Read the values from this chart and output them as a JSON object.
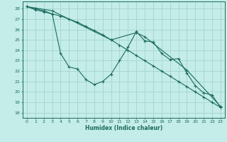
{
  "xlabel": "Humidex (Indice chaleur)",
  "xlim": [
    -0.5,
    23.5
  ],
  "ylim": [
    17.5,
    28.7
  ],
  "yticks": [
    18,
    19,
    20,
    21,
    22,
    23,
    24,
    25,
    26,
    27,
    28
  ],
  "xticks": [
    0,
    1,
    2,
    3,
    4,
    5,
    6,
    7,
    8,
    9,
    10,
    11,
    12,
    13,
    14,
    15,
    16,
    17,
    18,
    19,
    20,
    21,
    22,
    23
  ],
  "bg_color": "#c4ece8",
  "grid_color": "#a8d8d0",
  "line_color": "#1a6b5e",
  "series": [
    {
      "x": [
        0,
        1,
        2,
        3,
        4,
        5,
        6,
        7,
        8,
        9,
        10,
        11,
        12,
        13,
        14,
        15,
        16,
        17,
        18,
        19,
        20,
        21,
        22,
        23
      ],
      "y": [
        28.2,
        28.0,
        27.8,
        27.5,
        23.7,
        22.4,
        22.2,
        21.2,
        20.7,
        21.0,
        21.7,
        23.0,
        24.3,
        25.8,
        24.9,
        24.8,
        23.7,
        23.1,
        23.2,
        21.8,
        20.6,
        19.9,
        19.7,
        18.5
      ]
    },
    {
      "x": [
        0,
        1,
        2,
        3,
        4,
        5,
        6,
        7,
        8,
        9,
        10,
        11,
        12,
        13,
        14,
        15,
        16,
        17,
        18,
        19,
        20,
        21,
        22,
        23
      ],
      "y": [
        28.2,
        27.9,
        27.7,
        27.5,
        27.3,
        27.0,
        26.7,
        26.3,
        25.9,
        25.5,
        25.0,
        24.5,
        24.0,
        23.5,
        23.0,
        22.5,
        22.0,
        21.5,
        21.0,
        20.5,
        20.0,
        19.5,
        19.0,
        18.5
      ]
    },
    {
      "x": [
        0,
        3,
        10,
        13,
        14,
        19,
        23
      ],
      "y": [
        28.2,
        27.8,
        25.0,
        25.7,
        25.3,
        22.1,
        18.6
      ]
    }
  ]
}
